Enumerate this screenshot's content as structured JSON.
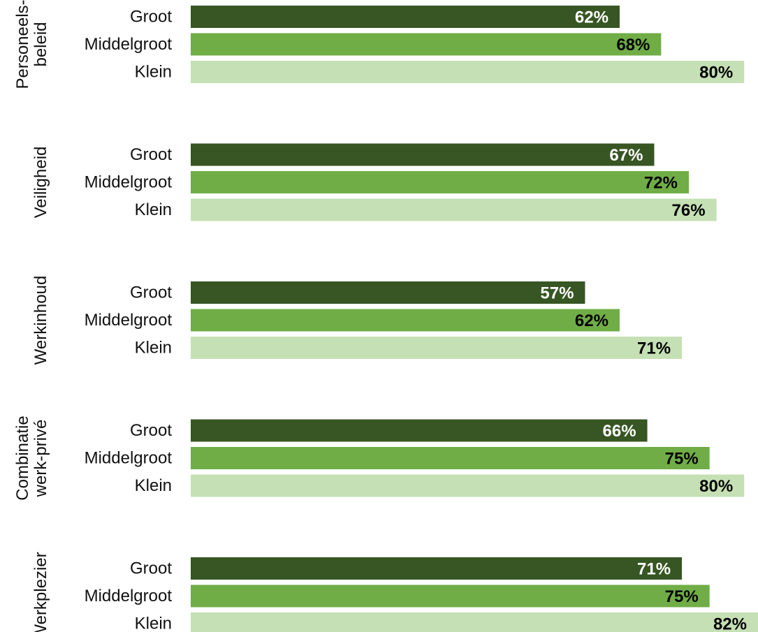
{
  "chart_data": {
    "type": "bar",
    "orientation": "horizontal",
    "title": "",
    "xlabel": "",
    "ylabel": "",
    "xlim": [
      0,
      82
    ],
    "grid": false,
    "legend": "none",
    "value_suffix": "%",
    "subcategories": [
      "Groot",
      "Middelgroot",
      "Klein"
    ],
    "colors": {
      "Groot": "#375623",
      "Middelgroot": "#70ad47",
      "Klein": "#c5e0b4"
    },
    "label_colors": {
      "Groot": "#ffffff",
      "Middelgroot": "#000000",
      "Klein": "#000000"
    },
    "groups": [
      {
        "lines": [
          "Personeels-",
          "beleid"
        ],
        "values": [
          62,
          68,
          80
        ]
      },
      {
        "lines": [
          "Veiligheid"
        ],
        "values": [
          67,
          72,
          76
        ]
      },
      {
        "lines": [
          "Werkinhoud"
        ],
        "values": [
          57,
          62,
          71
        ]
      },
      {
        "lines": [
          "Combinatie",
          "werk-privé"
        ],
        "values": [
          66,
          75,
          80
        ]
      },
      {
        "lines": [
          "Werkplezier"
        ],
        "values": [
          71,
          75,
          82
        ]
      }
    ]
  }
}
